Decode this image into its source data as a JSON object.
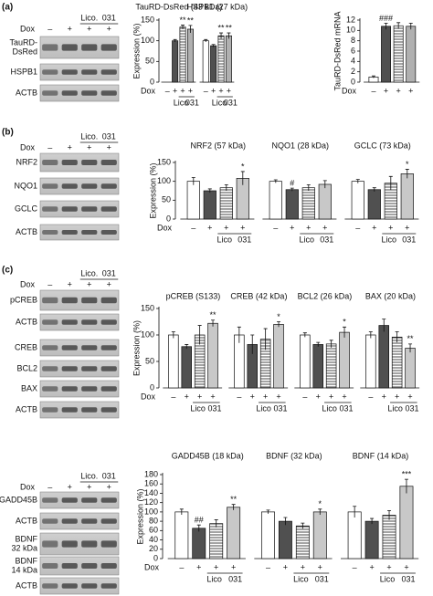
{
  "panels": [
    "(a)",
    "(b)",
    "(c)"
  ],
  "blots": [
    {
      "dox": "Dox",
      "signs": [
        "–",
        "+",
        "+",
        "+"
      ],
      "treatments": [
        "Lico.",
        "031"
      ],
      "rows": [
        {
          "label": [
            "TauRD-",
            "DsRed"
          ]
        },
        {
          "label": [
            "HSPB1"
          ]
        },
        {
          "label": [
            "ACTB"
          ]
        }
      ]
    },
    {
      "dox": "Dox",
      "signs": [
        "–",
        "+",
        "+",
        "+"
      ],
      "treatments": [
        "Lico.",
        "031"
      ],
      "rows": [
        {
          "label": [
            "NRF2"
          ]
        },
        {
          "label": [
            "NQO1"
          ]
        },
        {
          "label": [
            "GCLC"
          ]
        },
        {
          "label": [
            "ACTB"
          ]
        }
      ]
    },
    {
      "dox": "Dox",
      "signs": [
        "–",
        "+",
        "+",
        "+"
      ],
      "treatments": [
        "Lico.",
        "031"
      ],
      "rows": [
        {
          "label": [
            "pCREB"
          ]
        },
        {
          "label": [
            "ACTB"
          ]
        },
        {
          "label": [
            "CREB"
          ]
        },
        {
          "label": [
            "BCL2"
          ]
        },
        {
          "label": [
            "BAX"
          ]
        },
        {
          "label": [
            "ACTB"
          ]
        }
      ]
    },
    {
      "dox": "Dox",
      "signs": [
        "–",
        "+",
        "+",
        "+"
      ],
      "treatments": [
        "Lico.",
        "031"
      ],
      "rows": [
        {
          "label": [
            "GADD45B"
          ]
        },
        {
          "label": [
            "ACTB"
          ]
        },
        {
          "label": [
            "BDNF",
            "32 kDa"
          ]
        },
        {
          "label": [
            "BDNF",
            "14 kDa"
          ]
        },
        {
          "label": [
            "ACTB"
          ]
        }
      ]
    }
  ],
  "chart_data": [
    {
      "type": "bar",
      "y_label": "Expression (%)",
      "ylim": [
        0,
        150
      ],
      "yticks": [
        0,
        50,
        100,
        150
      ],
      "dox": "Dox",
      "signs": [
        "–",
        "+",
        "+",
        "+"
      ],
      "treatments": [
        "Lico",
        "031"
      ],
      "fills": [
        "#ffffff",
        "#505050",
        "stripes",
        "#b0b0b0"
      ],
      "groups": [
        {
          "label": "TauRD-DsRed (43 kDa)",
          "values": [
            null,
            100,
            133,
            128
          ],
          "errors": [
            null,
            3,
            5,
            9
          ],
          "annotations": [
            null,
            null,
            "**",
            "**"
          ]
        },
        {
          "label": "HSPB1 (27 kDa)",
          "values": [
            100,
            88,
            112,
            112
          ],
          "errors": [
            3,
            3,
            7,
            7
          ],
          "annotations": [
            null,
            null,
            "**",
            "**"
          ]
        }
      ]
    },
    {
      "type": "bar",
      "y_label": "TauRD-DsRed mRNA",
      "ylim": [
        0,
        12
      ],
      "yticks": [
        0,
        2,
        4,
        6,
        8,
        10,
        12
      ],
      "dox": "Dox",
      "signs": [
        "–",
        "+",
        "+",
        "+"
      ],
      "fills": [
        "#ffffff",
        "#505050",
        "stripes",
        "#b0b0b0"
      ],
      "groups": [
        {
          "values": [
            1,
            10.8,
            10.9,
            10.8
          ],
          "errors": [
            0.2,
            0.6,
            0.6,
            0.6
          ],
          "annotations": [
            null,
            "###",
            null,
            null
          ]
        }
      ]
    },
    {
      "type": "bar",
      "y_label": "Expression (%)",
      "ylim": [
        0,
        150
      ],
      "yticks": [
        0,
        50,
        100,
        150
      ],
      "dox": "Dox",
      "signs": [
        "–",
        "+",
        "+",
        "+"
      ],
      "treatments": [
        "Lico",
        "031"
      ],
      "fills": [
        "#ffffff",
        "#505050",
        "stripes",
        "#c8c8c8"
      ],
      "groups": [
        {
          "label": "NRF2 (57 kDa)",
          "values": [
            100,
            75,
            83,
            108
          ],
          "errors": [
            10,
            5,
            8,
            18
          ],
          "annotations": [
            null,
            null,
            null,
            "*"
          ]
        },
        {
          "label": "NQO1 (28 kDa)",
          "values": [
            100,
            78,
            83,
            92
          ],
          "errors": [
            4,
            4,
            8,
            10
          ],
          "annotations": [
            null,
            "#",
            null,
            null
          ]
        },
        {
          "label": "GCLC (73 kDa)",
          "values": [
            100,
            78,
            95,
            120
          ],
          "errors": [
            5,
            5,
            18,
            12
          ],
          "annotations": [
            null,
            null,
            null,
            "*"
          ]
        }
      ]
    },
    {
      "type": "bar",
      "y_label": "Expression (%)",
      "ylim": [
        0,
        150
      ],
      "yticks": [
        0,
        50,
        100,
        150
      ],
      "dox": "Dox",
      "signs": [
        "–",
        "+",
        "+",
        "+"
      ],
      "treatments": [
        "Lico",
        "031"
      ],
      "fills": [
        "#ffffff",
        "#505050",
        "stripes",
        "#c8c8c8"
      ],
      "groups": [
        {
          "label": "pCREB (S133)",
          "values": [
            100,
            78,
            100,
            122
          ],
          "errors": [
            6,
            4,
            18,
            6
          ],
          "annotations": [
            null,
            null,
            null,
            "**"
          ]
        },
        {
          "label": "CREB (42 kDa)",
          "values": [
            100,
            82,
            92,
            120
          ],
          "errors": [
            15,
            18,
            20,
            5
          ],
          "annotations": [
            null,
            null,
            null,
            "*"
          ]
        },
        {
          "label": "BCL2 (26 kDa)",
          "values": [
            100,
            82,
            83,
            105
          ],
          "errors": [
            4,
            4,
            7,
            10
          ],
          "annotations": [
            null,
            null,
            null,
            "*"
          ]
        },
        {
          "label": "BAX (20 kDa)",
          "values": [
            100,
            118,
            96,
            75
          ],
          "errors": [
            6,
            12,
            10,
            8
          ],
          "annotations": [
            null,
            null,
            null,
            "**"
          ]
        }
      ]
    },
    {
      "type": "bar",
      "y_label": "Expression (%)",
      "ylim": [
        0,
        180
      ],
      "yticks": [
        0,
        20,
        40,
        60,
        80,
        100,
        120,
        140,
        160,
        180
      ],
      "dox": "Dox",
      "signs": [
        "–",
        "+",
        "+",
        "+"
      ],
      "treatments": [
        "Lico",
        "031"
      ],
      "fills": [
        "#ffffff",
        "#505050",
        "stripes",
        "#c8c8c8"
      ],
      "groups": [
        {
          "label": "GADD45B (18 kDa)",
          "values": [
            100,
            65,
            75,
            110
          ],
          "errors": [
            6,
            7,
            8,
            6
          ],
          "annotations": [
            null,
            "##",
            null,
            "**"
          ]
        },
        {
          "label": "BDNF (32 kDa)",
          "values": [
            100,
            80,
            70,
            100
          ],
          "errors": [
            4,
            8,
            6,
            6
          ],
          "annotations": [
            null,
            null,
            null,
            "*"
          ]
        },
        {
          "label": "BDNF (14 kDa)",
          "values": [
            100,
            80,
            93,
            155
          ],
          "errors": [
            12,
            6,
            10,
            15
          ],
          "annotations": [
            null,
            null,
            null,
            "***"
          ]
        }
      ]
    }
  ]
}
